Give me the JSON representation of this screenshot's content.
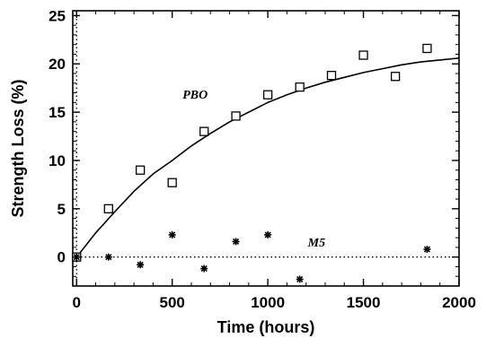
{
  "chart_data": {
    "type": "scatter",
    "xlabel": "Time (hours)",
    "ylabel": "Strength Loss (%)",
    "xlim": [
      -20,
      2000
    ],
    "ylim": [
      -3,
      25.5
    ],
    "xticks": [
      0,
      500,
      1000,
      1500,
      2000
    ],
    "yticks": [
      0,
      5,
      10,
      15,
      20,
      25
    ],
    "grid": false,
    "series": [
      {
        "name": "PBO",
        "marker": "open-square",
        "x": [
          0,
          167,
          333,
          500,
          667,
          833,
          1000,
          1167,
          1333,
          1500,
          1667,
          1833
        ],
        "y": [
          0,
          5.0,
          9.0,
          7.7,
          13.0,
          14.6,
          16.8,
          17.6,
          18.8,
          20.9,
          18.7,
          21.6
        ]
      },
      {
        "name": "M5",
        "marker": "asterisk",
        "x": [
          0,
          167,
          333,
          500,
          667,
          833,
          1000,
          1167,
          1833
        ],
        "y": [
          0,
          0.0,
          -0.8,
          2.3,
          -1.2,
          1.6,
          2.3,
          -2.3,
          0.8
        ]
      }
    ],
    "fit_curve": {
      "series": "PBO",
      "x": [
        0,
        100,
        200,
        300,
        400,
        500,
        600,
        700,
        800,
        900,
        1000,
        1100,
        1200,
        1300,
        1400,
        1500,
        1600,
        1700,
        1800,
        1900,
        2000
      ],
      "y": [
        0.0,
        2.5,
        4.7,
        6.8,
        8.6,
        10.0,
        11.5,
        12.8,
        14.0,
        15.0,
        16.0,
        16.8,
        17.5,
        18.1,
        18.6,
        19.1,
        19.5,
        19.9,
        20.2,
        20.4,
        20.6
      ]
    },
    "zero_line": {
      "y": 0,
      "style": "dotted"
    },
    "vertical_ref": {
      "x": 0,
      "style": "dotted"
    },
    "annotations": [
      {
        "text": "PBO",
        "x": 620,
        "y": 16.4
      },
      {
        "text": "M5",
        "x": 1255,
        "y": 1.1
      }
    ]
  }
}
